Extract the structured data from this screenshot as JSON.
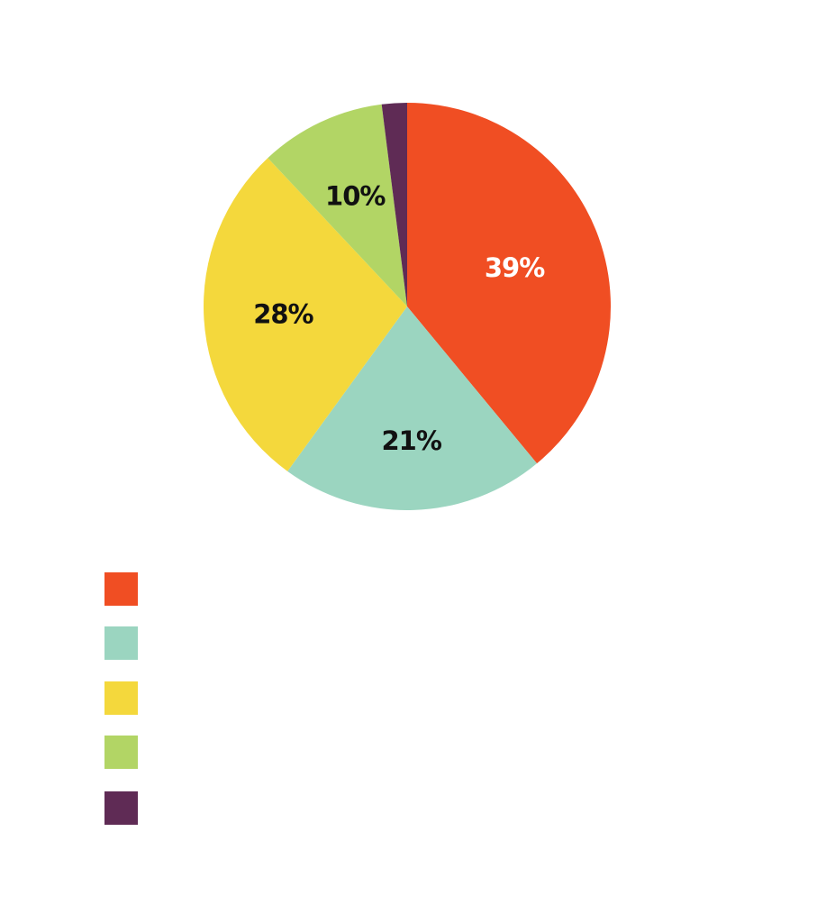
{
  "chart_data": {
    "type": "pie",
    "slices": [
      {
        "label": "",
        "value": 39,
        "text": "39%",
        "color": "#F04E23",
        "text_color": "#FFFFFF"
      },
      {
        "label": "",
        "value": 21,
        "text": "21%",
        "color": "#9BD5C0",
        "text_color": "#111111"
      },
      {
        "label": "",
        "value": 28,
        "text": "28%",
        "color": "#F4D83C",
        "text_color": "#111111"
      },
      {
        "label": "",
        "value": 10,
        "text": "10%",
        "color": "#B2D565",
        "text_color": "#111111"
      },
      {
        "label": "",
        "value": 2,
        "text": "",
        "color": "#5F2B55",
        "text_color": "#FFFFFF"
      }
    ],
    "start_angle_deg": 0,
    "direction": "clockwise",
    "legend_placement": "bottom-left",
    "title": ""
  }
}
